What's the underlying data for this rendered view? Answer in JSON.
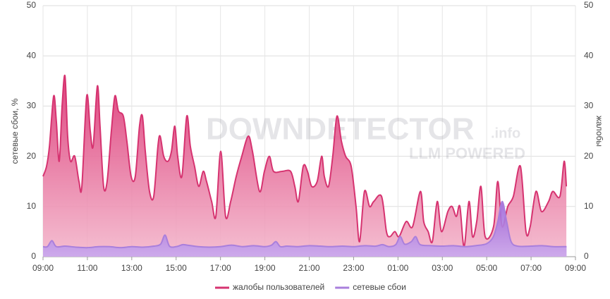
{
  "chart_data": {
    "type": "area",
    "ylabel": "сетевые сбои, %",
    "y2label": "жалобы",
    "watermark": {
      "text": "DOWNDETECTOR",
      "suffix": ".info",
      "sub": "LLM POWERED"
    },
    "xlim": [
      0,
      24
    ],
    "xticks": [
      {
        "value": 0,
        "label": "09:00"
      },
      {
        "value": 2,
        "label": "11:00"
      },
      {
        "value": 4,
        "label": "13:00"
      },
      {
        "value": 6,
        "label": "15:00"
      },
      {
        "value": 8,
        "label": "17:00"
      },
      {
        "value": 10,
        "label": "19:00"
      },
      {
        "value": 12,
        "label": "21:00"
      },
      {
        "value": 14,
        "label": "23:00"
      },
      {
        "value": 16,
        "label": "01:00"
      },
      {
        "value": 18,
        "label": "03:00"
      },
      {
        "value": 20,
        "label": "05:00"
      },
      {
        "value": 22,
        "label": "07:00"
      },
      {
        "value": 24,
        "label": "09:00"
      }
    ],
    "ylim": [
      0,
      50
    ],
    "yticks": [
      0,
      10,
      20,
      30,
      40,
      50
    ],
    "y2lim": [
      0,
      50
    ],
    "y2ticks": [
      0,
      10,
      20,
      30,
      40,
      50
    ],
    "grid": true,
    "legend": "bottom",
    "series": [
      {
        "name": "жалобы пользователей",
        "color": "#d63370",
        "axis": "y2",
        "x": [
          0,
          0.16,
          0.29,
          0.48,
          0.6,
          0.73,
          0.86,
          0.99,
          1.11,
          1.24,
          1.43,
          1.62,
          1.75,
          1.97,
          2.13,
          2.26,
          2.45,
          2.57,
          2.73,
          2.89,
          3.08,
          3.24,
          3.4,
          3.62,
          3.78,
          3.97,
          4.16,
          4.35,
          4.48,
          4.61,
          4.8,
          4.99,
          5.18,
          5.28,
          5.44,
          5.63,
          5.79,
          5.94,
          6.07,
          6.26,
          6.48,
          6.64,
          6.83,
          7.02,
          7.22,
          7.37,
          7.6,
          7.79,
          8.01,
          8.23,
          8.46,
          8.71,
          8.96,
          9.25,
          9.44,
          9.76,
          9.98,
          10.2,
          10.39,
          10.78,
          11.16,
          11.35,
          11.51,
          11.73,
          11.92,
          12.11,
          12.36,
          12.56,
          12.68,
          12.87,
          13.06,
          13.25,
          13.45,
          13.64,
          13.89,
          14.11,
          14.27,
          14.49,
          14.72,
          14.91,
          15.26,
          15.48,
          15.64,
          15.86,
          16.05,
          16.37,
          16.66,
          17.01,
          17.16,
          17.36,
          17.55,
          17.77,
          17.96,
          18.25,
          18.44,
          18.63,
          18.79,
          18.98,
          19.2,
          19.36,
          19.55,
          19.74,
          19.93,
          20.31,
          20.5,
          20.69,
          20.95,
          21.2,
          21.52,
          21.77,
          21.96,
          22.22,
          22.47,
          22.79,
          22.98,
          23.3,
          23.49,
          23.59
        ],
        "values": [
          16,
          18,
          22,
          32,
          27,
          19,
          30,
          36,
          24,
          19,
          20,
          15,
          14,
          32,
          25,
          22,
          34,
          26,
          14,
          15,
          25,
          32,
          29,
          28,
          23,
          16,
          16,
          26,
          28,
          21,
          13,
          12,
          22,
          24,
          20,
          19,
          21,
          26,
          20,
          16,
          28,
          22,
          18,
          14,
          17,
          15,
          11,
          8,
          21,
          8,
          11,
          16,
          20,
          24,
          21,
          13,
          17,
          20,
          17,
          17,
          17,
          14,
          11,
          18,
          17,
          14,
          15,
          20,
          16,
          14,
          20,
          28,
          23,
          20,
          18,
          10,
          3,
          13,
          10,
          11,
          12,
          5,
          4,
          5,
          4,
          7,
          6,
          13,
          7,
          5,
          3,
          11,
          5,
          9,
          10,
          8,
          10,
          2,
          11,
          4,
          7,
          14,
          4,
          6,
          15,
          6,
          10,
          12,
          18,
          5,
          6,
          13,
          9,
          11,
          13,
          12,
          19,
          14
        ]
      },
      {
        "name": "сетевые сбои",
        "color": "#a97fdc",
        "axis": "y",
        "x": [
          0,
          0.2,
          0.4,
          0.6,
          1,
          1.5,
          2,
          2.5,
          3,
          3.5,
          4,
          4.5,
          5,
          5.3,
          5.5,
          5.7,
          6,
          6.3,
          6.5,
          7,
          7.5,
          8,
          8.5,
          9,
          9.5,
          10,
          10.3,
          10.5,
          10.7,
          11,
          11.5,
          12,
          12.5,
          13,
          13.5,
          14,
          14.5,
          15,
          15.3,
          15.6,
          15.9,
          16.1,
          16.3,
          16.6,
          16.8,
          17,
          17.5,
          18,
          18.5,
          19,
          19.5,
          20,
          20.3,
          20.5,
          20.7,
          20.9,
          21.1,
          21.4,
          22,
          22.5,
          23,
          23.6
        ],
        "values": [
          2,
          2,
          3.2,
          2,
          2.1,
          1.9,
          1.8,
          2,
          2,
          1.8,
          2,
          1.9,
          2.1,
          2.5,
          4.3,
          2.1,
          2,
          2.4,
          2.3,
          2,
          1.9,
          2,
          2.3,
          2,
          2.2,
          2,
          2.3,
          3,
          2,
          2.1,
          2,
          2.2,
          2.1,
          2,
          2.1,
          2,
          2.2,
          2.1,
          2.4,
          2,
          2.4,
          4,
          2.5,
          3,
          4,
          2.4,
          2.2,
          2.1,
          2.2,
          2,
          2.2,
          2.6,
          4,
          7,
          11,
          7,
          3,
          2.1,
          2.1,
          2.2,
          2,
          2
        ]
      }
    ]
  }
}
